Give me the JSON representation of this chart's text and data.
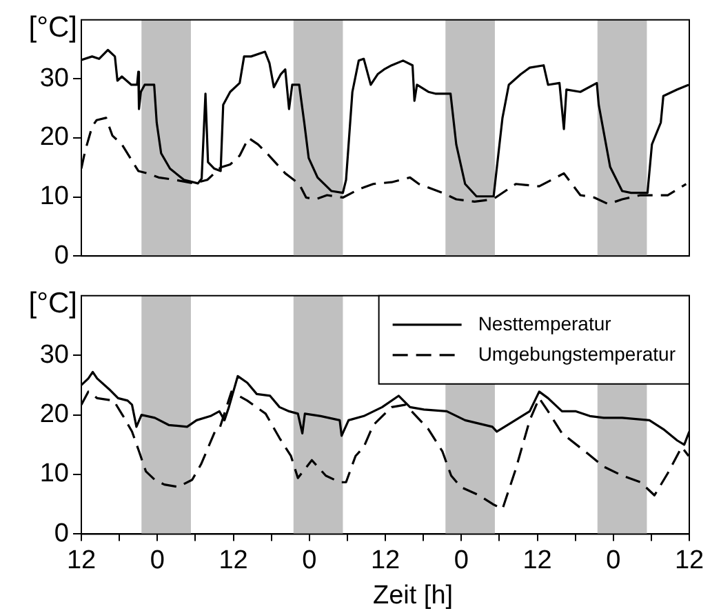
{
  "chart_data": [
    {
      "type": "line",
      "ylabel": "[°C]",
      "tick_labels": "y",
      "grid": false,
      "marker": "none",
      "xlim": [
        "--01-01T12:00",
        "--01-05T12:00"
      ],
      "ylim": [
        0,
        40
      ],
      "yticks": [
        0,
        10,
        20,
        30
      ],
      "bands": [
        {
          "axis": "x",
          "from": "--01-01T21:30",
          "to": "--01-02T05:18",
          "color": "#c0c0c0"
        },
        {
          "axis": "x",
          "from": "--01-02T21:30",
          "to": "--01-03T05:18",
          "color": "#c0c0c0"
        },
        {
          "axis": "x",
          "from": "--01-03T21:30",
          "to": "--01-04T05:18",
          "color": "#c0c0c0"
        },
        {
          "axis": "x",
          "from": "--01-04T21:30",
          "to": "--01-05T05:18",
          "color": "#c0c0c0"
        }
      ],
      "series": [
        {
          "color": "#000000",
          "line_style": "solid",
          "x": [
            "--01-01T12:00",
            "--01-01T13:42",
            "--01-01T14:48",
            "--01-01T16:12",
            "--01-01T17:18",
            "--01-01T17:42",
            "--01-01T18:24",
            "--01-01T19:54",
            "--01-01T20:48",
            "--01-01T21:00",
            "--01-01T21:06",
            "--01-01T21:24",
            "--01-01T22:00",
            "--01-01T23:30",
            "--01-01T23:54",
            "--01-02T00:36",
            "--01-02T02:00",
            "--01-02T04:12",
            "--01-02T06:24",
            "--01-02T07:00",
            "--01-02T07:36",
            "--01-02T08:00",
            "--01-02T09:00",
            "--01-02T10:00",
            "--01-02T10:24",
            "--01-02T11:30",
            "--01-02T13:00",
            "--01-02T13:42",
            "--01-02T14:48",
            "--01-02T17:00",
            "--01-02T17:42",
            "--01-02T18:24",
            "--01-02T19:30",
            "--01-02T20:12",
            "--01-02T20:48",
            "--01-02T21:18",
            "--01-02T22:24",
            "--01-02T23:12",
            "--01-02T23:54",
            "--01-03T01:18",
            "--01-03T03:30",
            "--01-03T05:18",
            "--01-03T05:48",
            "--01-03T06:48",
            "--01-03T07:48",
            "--01-03T08:36",
            "--01-03T09:42",
            "--01-03T10:48",
            "--01-03T11:48",
            "--01-03T13:00",
            "--01-03T14:48",
            "--01-03T16:18",
            "--01-03T16:36",
            "--01-03T17:00",
            "--01-03T18:48",
            "--01-03T19:54",
            "--01-03T22:18",
            "--01-03T23:12",
            "--01-04T00:36",
            "--01-04T02:24",
            "--01-04T05:06",
            "--01-04T06:30",
            "--01-04T07:30",
            "--01-04T09:24",
            "--01-04T10:48",
            "--01-04T13:00",
            "--01-04T13:42",
            "--01-04T15:30",
            "--01-04T16:12",
            "--01-04T16:36",
            "--01-04T18:48",
            "--01-04T21:24",
            "--01-04T21:42",
            "--01-04T23:30",
            "--01-05T01:24",
            "--01-05T02:48",
            "--01-05T05:24",
            "--01-05T06:06",
            "--01-05T07:30",
            "--01-05T07:54",
            "--01-05T10:06",
            "--01-05T11:54"
          ],
          "values": [
            33.2,
            33.8,
            33.4,
            34.9,
            33.8,
            29.7,
            30.4,
            29,
            29,
            31.2,
            24.9,
            27.8,
            29,
            29,
            22.6,
            17.4,
            14.8,
            12.9,
            12.3,
            13.1,
            27.5,
            15.9,
            14.8,
            14.4,
            25.6,
            27.8,
            29.3,
            33.8,
            33.8,
            34.6,
            32.7,
            28.6,
            30.8,
            31.6,
            24.9,
            29,
            29,
            22.6,
            16.6,
            13.3,
            11,
            10.7,
            12.9,
            27.8,
            33.1,
            33.4,
            29,
            30.8,
            31.6,
            32.3,
            33.1,
            32.3,
            26.3,
            29,
            27.8,
            27.5,
            27.5,
            18.9,
            12.2,
            10.1,
            10.1,
            23.4,
            29,
            30.8,
            31.9,
            32.3,
            29,
            29.3,
            21.5,
            28.2,
            27.8,
            29.3,
            25.6,
            15.1,
            11,
            10.7,
            10.7,
            18.9,
            22.6,
            27.1,
            28.2,
            29
          ]
        },
        {
          "color": "#000000",
          "line_style": "dashed",
          "x": [
            "--01-01T12:00",
            "--01-01T12:36",
            "--01-01T13:42",
            "--01-01T14:24",
            "--01-01T15:54",
            "--01-01T16:54",
            "--01-01T18:24",
            "--01-01T21:00",
            "--01-01T22:24",
            "--01-02T00:12",
            "--01-02T02:48",
            "--01-02T05:42",
            "--01-02T07:54",
            "--01-02T10:00",
            "--01-02T11:30",
            "--01-02T13:00",
            "--01-02T14:24",
            "--01-02T15:54",
            "--01-02T17:18",
            "--01-02T20:12",
            "--01-02T22:24",
            "--01-02T23:30",
            "--01-03T01:00",
            "--01-03T02:48",
            "--01-03T05:18",
            "--01-03T08:00",
            "--01-03T10:06",
            "--01-03T13:00",
            "--01-03T15:54",
            "--01-03T17:18",
            "--01-03T21:00",
            "--01-03T23:12",
            "--01-04T02:06",
            "--01-04T05:00",
            "--01-04T08:36",
            "--01-04T12:18",
            "--01-04T16:12",
            "--01-04T18:48",
            "--01-04T21:00",
            "--01-04T23:12",
            "--01-05T01:24",
            "--01-05T04:18",
            "--01-05T08:36",
            "--01-05T11:30"
          ],
          "values": [
            14.8,
            17.8,
            21.9,
            23,
            23.4,
            20.4,
            18.9,
            14.4,
            14,
            13.3,
            12.9,
            12.3,
            12.9,
            15,
            15.5,
            17,
            20,
            18.9,
            17.4,
            14,
            12.2,
            9.9,
            9.6,
            10.3,
            9.9,
            11.4,
            12.2,
            12.5,
            13.3,
            12.2,
            10.7,
            9.6,
            9.2,
            9.6,
            12.2,
            11.8,
            14,
            10.3,
            9.9,
            8.8,
            9.6,
            10.3,
            10.3,
            12.2
          ]
        }
      ]
    },
    {
      "type": "line",
      "ylabel": "[°C]",
      "xlabel": "Zeit [h]",
      "grid": false,
      "marker": "none",
      "legend": "top right",
      "xlim": [
        "--01-01T12:00",
        "--01-05T12:00"
      ],
      "xticks": [
        {
          "value": "--01-01T12:00",
          "label": "12"
        },
        {
          "value": "--01-01T18:00",
          "label": null
        },
        {
          "value": "--01-02T00:00",
          "label": "0"
        },
        {
          "value": "--01-02T06:00",
          "label": null
        },
        {
          "value": "--01-02T12:00",
          "label": "12"
        },
        {
          "value": "--01-02T18:00",
          "label": null
        },
        {
          "value": "--01-03T00:00",
          "label": "0"
        },
        {
          "value": "--01-03T06:00",
          "label": null
        },
        {
          "value": "--01-03T12:00",
          "label": "12"
        },
        {
          "value": "--01-03T18:00",
          "label": null
        },
        {
          "value": "--01-04T00:00",
          "label": "0"
        },
        {
          "value": "--01-04T06:00",
          "label": null
        },
        {
          "value": "--01-04T12:00",
          "label": "12"
        },
        {
          "value": "--01-04T18:00",
          "label": null
        },
        {
          "value": "--01-05T00:00",
          "label": "0"
        },
        {
          "value": "--01-05T06:00",
          "label": null
        },
        {
          "value": "--01-05T12:00",
          "label": "12"
        }
      ],
      "ylim": [
        0,
        40
      ],
      "yticks": [
        0,
        10,
        20,
        30
      ],
      "bands": [
        {
          "axis": "x",
          "from": "--01-01T21:30",
          "to": "--01-02T05:18",
          "color": "#c0c0c0"
        },
        {
          "axis": "x",
          "from": "--01-02T21:30",
          "to": "--01-03T05:18",
          "color": "#c0c0c0"
        },
        {
          "axis": "x",
          "from": "--01-03T21:30",
          "to": "--01-04T05:18",
          "color": "#c0c0c0"
        },
        {
          "axis": "x",
          "from": "--01-04T21:30",
          "to": "--01-05T05:18",
          "color": "#c0c0c0"
        }
      ],
      "series": [
        {
          "name": "Nesttemperatur",
          "color": "#000000",
          "line_style": "solid",
          "x": [
            "--01-01T12:00",
            "--01-01T13:06",
            "--01-01T13:48",
            "--01-01T14:30",
            "--01-01T16:24",
            "--01-01T17:48",
            "--01-01T19:18",
            "--01-01T20:00",
            "--01-01T20:42",
            "--01-01T21:30",
            "--01-01T23:36",
            "--01-02T01:48",
            "--01-02T04:42",
            "--01-02T06:12",
            "--01-02T08:24",
            "--01-02T09:48",
            "--01-02T10:36",
            "--01-02T11:18",
            "--01-02T12:42",
            "--01-02T14:12",
            "--01-02T15:42",
            "--01-02T17:48",
            "--01-02T19:18",
            "--01-02T20:48",
            "--01-02T22:12",
            "--01-02T22:54",
            "--01-02T23:18",
            "--01-03T01:48",
            "--01-03T04:48",
            "--01-03T05:06",
            "--01-03T06:12",
            "--01-03T08:36",
            "--01-03T11:30",
            "--01-03T14:06",
            "--01-03T15:54",
            "--01-03T18:06",
            "--01-03T21:42",
            "--01-04T00:36",
            "--01-04T04:54",
            "--01-04T05:36",
            "--01-04T07:54",
            "--01-04T10:48",
            "--01-04T12:18",
            "--01-04T13:42",
            "--01-04T15:54",
            "--01-04T18:06",
            "--01-04T20:18",
            "--01-04T22:30",
            "--01-05T01:24",
            "--01-05T05:42",
            "--01-05T07:54",
            "--01-05T10:06",
            "--01-05T11:12",
            "--01-05T12:00"
          ],
          "values": [
            25,
            26.1,
            27.2,
            26.1,
            24.3,
            22.8,
            22.4,
            21.7,
            18,
            20,
            19.5,
            18.3,
            18,
            19.1,
            19.8,
            20.6,
            19.1,
            21.3,
            26.5,
            25.4,
            23.5,
            23.2,
            21.3,
            20.6,
            20.2,
            16.9,
            20.2,
            19.8,
            19.1,
            16.5,
            19.1,
            19.8,
            21.3,
            23.2,
            21.3,
            20.9,
            20.6,
            19.1,
            18,
            17.2,
            18.7,
            20.6,
            23.9,
            22.8,
            20.6,
            20.6,
            19.8,
            19.5,
            19.5,
            19.1,
            17.6,
            15.7,
            15,
            17.2
          ]
        },
        {
          "name": "Umgebungstemperatur",
          "color": "#000000",
          "line_style": "dashed",
          "x": [
            "--01-01T12:00",
            "--01-01T13:06",
            "--01-01T14:30",
            "--01-01T17:06",
            "--01-01T18:36",
            "--01-01T20:00",
            "--01-01T21:06",
            "--01-01T22:12",
            "--01-01T23:36",
            "--01-02T01:06",
            "--01-02T03:18",
            "--01-02T05:30",
            "--01-02T06:54",
            "--01-02T09:06",
            "--01-02T09:48",
            "--01-02T11:42",
            "--01-02T14:12",
            "--01-02T17:06",
            "--01-02T19:18",
            "--01-02T21:06",
            "--01-02T22:12",
            "--01-03T00:24",
            "--01-03T02:36",
            "--01-03T04:48",
            "--01-03T05:48",
            "--01-03T07:18",
            "--01-03T08:36",
            "--01-03T10:06",
            "--01-03T13:00",
            "--01-03T15:12",
            "--01-03T18:48",
            "--01-03T21:00",
            "--01-03T22:24",
            "--01-03T23:54",
            "--01-04T02:48",
            "--01-04T05:00",
            "--01-04T06:30",
            "--01-04T08:36",
            "--01-04T10:48",
            "--01-04T12:18",
            "--01-04T13:42",
            "--01-04T15:54",
            "--01-04T19:30",
            "--01-04T22:30",
            "--01-05T01:24",
            "--01-05T04:18",
            "--01-05T06:30",
            "--01-05T08:36",
            "--01-05T10:48",
            "--01-05T11:54"
          ],
          "values": [
            21.7,
            23.9,
            22.8,
            22.4,
            19.8,
            17.2,
            13.9,
            10.5,
            9.1,
            8.3,
            7.9,
            9.1,
            11.7,
            17.2,
            17.6,
            23.9,
            22.4,
            20.2,
            16.1,
            13.1,
            9.4,
            12.4,
            9.8,
            8.7,
            8.7,
            13.1,
            14.6,
            18.3,
            21.3,
            21.7,
            17.6,
            13.9,
            9.8,
            7.9,
            6.5,
            5,
            4.2,
            10.9,
            19.1,
            22.8,
            20.6,
            16.9,
            13.9,
            11.3,
            9.8,
            8.7,
            6.5,
            10.2,
            14.6,
            13.1
          ]
        }
      ]
    }
  ]
}
